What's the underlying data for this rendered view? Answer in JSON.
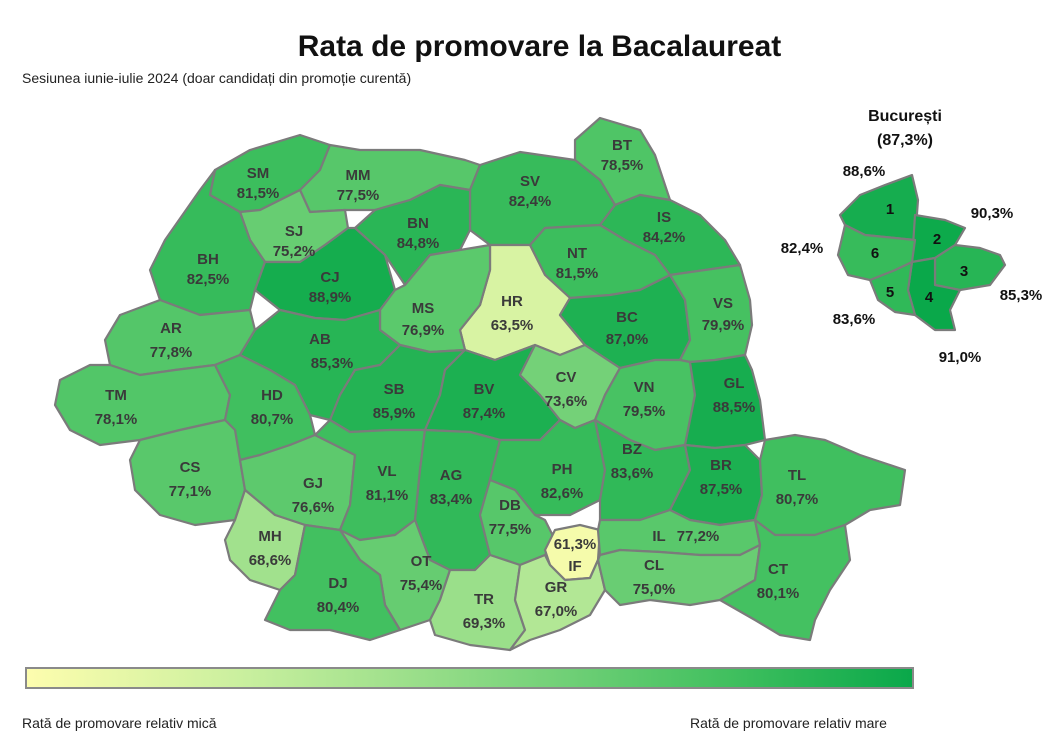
{
  "title": "Rata de promovare la Bacalaureat",
  "subtitle": "Sesiunea iunie-iulie 2024 (doar candidați din promoție curentă)",
  "counties": {
    "SM": {
      "code": "SM",
      "value": "81,5%"
    },
    "MM": {
      "code": "MM",
      "value": "77,5%"
    },
    "BT": {
      "code": "BT",
      "value": "78,5%"
    },
    "SV": {
      "code": "SV",
      "value": "82,4%"
    },
    "SJ": {
      "code": "SJ",
      "value": "75,2%"
    },
    "BN": {
      "code": "BN",
      "value": "84,8%"
    },
    "IS": {
      "code": "IS",
      "value": "84,2%"
    },
    "BH": {
      "code": "BH",
      "value": "82,5%"
    },
    "CJ": {
      "code": "CJ",
      "value": "88,9%"
    },
    "NT": {
      "code": "NT",
      "value": "81,5%"
    },
    "HR": {
      "code": "HR",
      "value": "63,5%"
    },
    "MS": {
      "code": "MS",
      "value": "76,9%"
    },
    "AR": {
      "code": "AR",
      "value": "77,8%"
    },
    "AB": {
      "code": "AB",
      "value": "85,3%"
    },
    "BC": {
      "code": "BC",
      "value": "87,0%"
    },
    "VS": {
      "code": "VS",
      "value": "79,9%"
    },
    "TM": {
      "code": "TM",
      "value": "78,1%"
    },
    "HD": {
      "code": "HD",
      "value": "80,7%"
    },
    "SB": {
      "code": "SB",
      "value": "85,9%"
    },
    "BV": {
      "code": "BV",
      "value": "87,4%"
    },
    "CV": {
      "code": "CV",
      "value": "73,6%"
    },
    "VN": {
      "code": "VN",
      "value": "79,5%"
    },
    "GL": {
      "code": "GL",
      "value": "88,5%"
    },
    "CS": {
      "code": "CS",
      "value": "77,1%"
    },
    "GJ": {
      "code": "GJ",
      "value": "76,6%"
    },
    "VL": {
      "code": "VL",
      "value": "81,1%"
    },
    "AG": {
      "code": "AG",
      "value": "83,4%"
    },
    "PH": {
      "code": "PH",
      "value": "82,6%"
    },
    "BZ": {
      "code": "BZ",
      "value": "83,6%"
    },
    "BR": {
      "code": "BR",
      "value": "87,5%"
    },
    "TL": {
      "code": "TL",
      "value": "80,7%"
    },
    "MH": {
      "code": "MH",
      "value": "68,6%"
    },
    "DB": {
      "code": "DB",
      "value": "77,5%"
    },
    "IF": {
      "code": "IF",
      "value": "61,3%"
    },
    "IL": {
      "code": "IL",
      "value": "77,2%"
    },
    "OT": {
      "code": "OT",
      "value": "75,4%"
    },
    "DJ": {
      "code": "DJ",
      "value": "80,4%"
    },
    "TR": {
      "code": "TR",
      "value": "69,3%"
    },
    "GR": {
      "code": "GR",
      "value": "67,0%"
    },
    "CL": {
      "code": "CL",
      "value": "75,0%"
    },
    "CT": {
      "code": "CT",
      "value": "80,1%"
    }
  },
  "bucuresti": {
    "name": "București",
    "total": "(87,3%)",
    "sectors": [
      {
        "number": "1",
        "value": "88,6%"
      },
      {
        "number": "2",
        "value": "90,3%"
      },
      {
        "number": "3",
        "value": "85,3%"
      },
      {
        "number": "4",
        "value": "91,0%"
      },
      {
        "number": "5",
        "value": "83,6%"
      },
      {
        "number": "6",
        "value": "82,4%"
      }
    ]
  },
  "legend": {
    "low_label": "Rată de promovare relativ mică",
    "high_label": "Rată de promovare relativ mare",
    "colors": [
      "#fdfdae",
      "#c8ef9e",
      "#7fd57e",
      "#3fbf5e",
      "#0aa84a"
    ]
  }
}
